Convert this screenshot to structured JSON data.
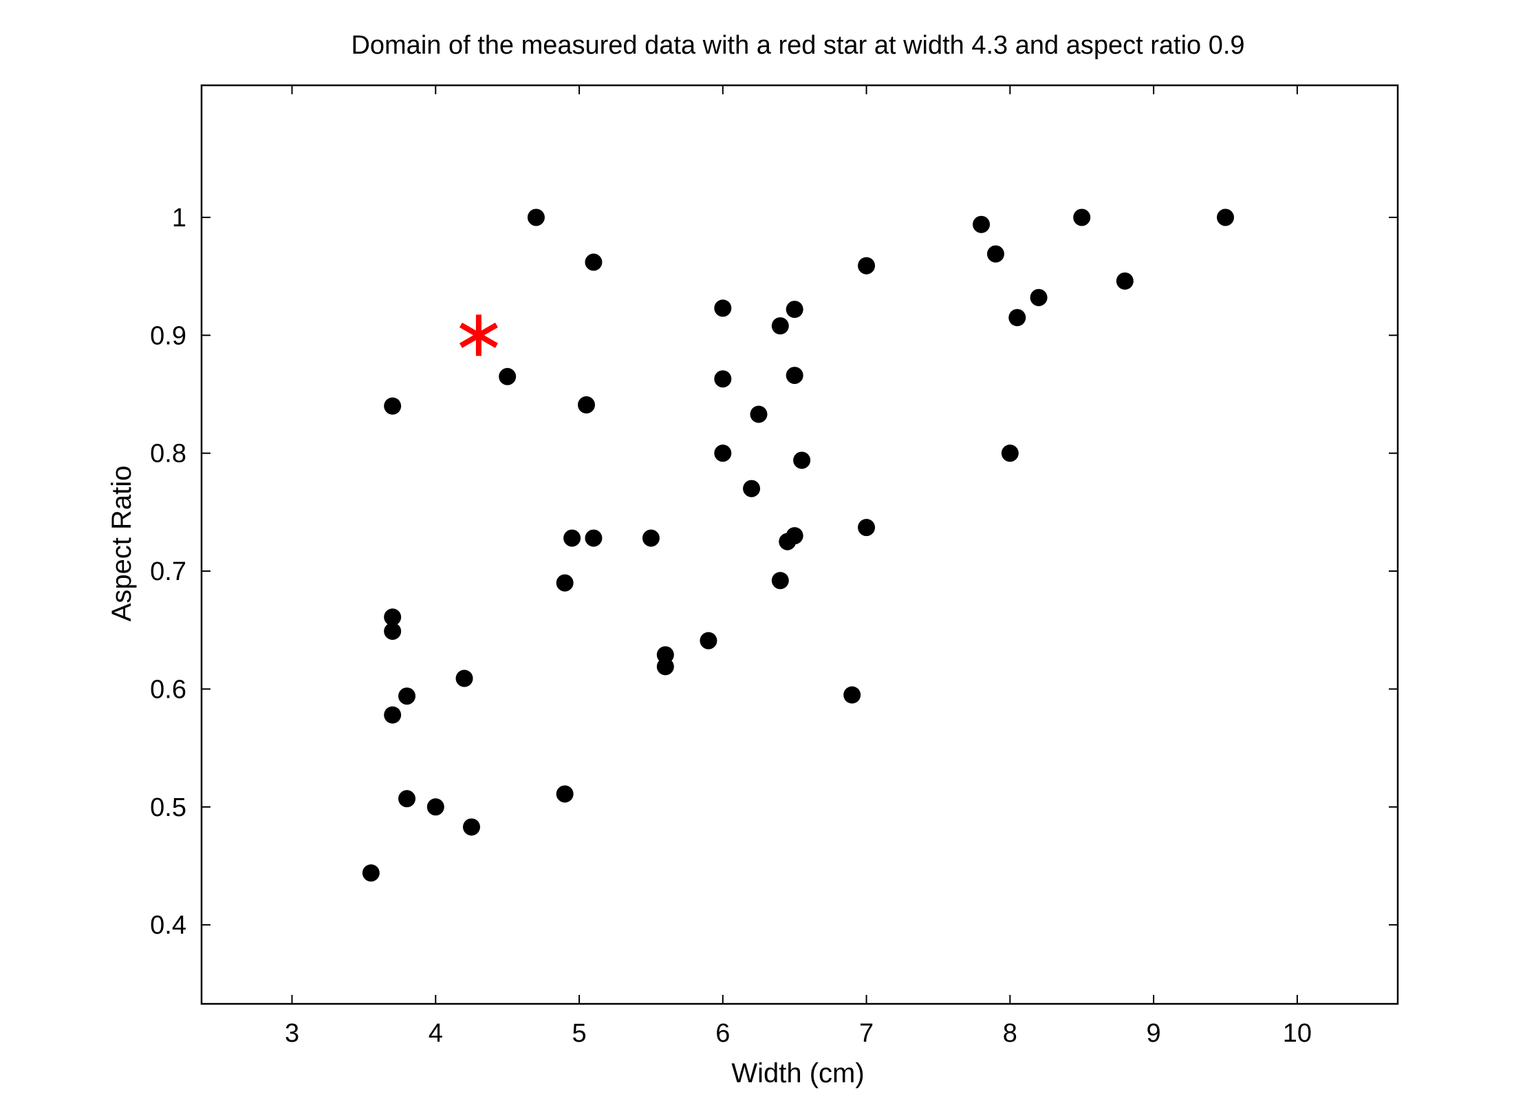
{
  "chart_data": {
    "type": "scatter",
    "title": "Domain of the measured data with a red star at width 4.3 and aspect ratio 0.9",
    "xlabel": "Width (cm)",
    "ylabel": "Aspect Ratio",
    "xlim": [
      2.37,
      10.7
    ],
    "ylim": [
      0.333,
      1.112
    ],
    "x_ticks": [
      3,
      4,
      5,
      6,
      7,
      8,
      9,
      10
    ],
    "y_ticks": [
      0.4,
      0.5,
      0.6,
      0.7,
      0.8,
      0.9,
      1
    ],
    "x_tick_labels": [
      "3",
      "4",
      "5",
      "6",
      "7",
      "8",
      "9",
      "10"
    ],
    "y_tick_labels": [
      "0.4",
      "0.5",
      "0.6",
      "0.7",
      "0.8",
      "0.9",
      "1"
    ],
    "grid": false,
    "series": [
      {
        "marker": "filled-circle",
        "color": "#000000",
        "points": [
          [
            3.55,
            0.444
          ],
          [
            3.7,
            0.84
          ],
          [
            3.7,
            0.661
          ],
          [
            3.7,
            0.649
          ],
          [
            3.7,
            0.578
          ],
          [
            3.8,
            0.594
          ],
          [
            3.8,
            0.507
          ],
          [
            4.0,
            0.5
          ],
          [
            4.2,
            0.609
          ],
          [
            4.25,
            0.483
          ],
          [
            4.5,
            0.865
          ],
          [
            4.7,
            1.0
          ],
          [
            4.9,
            0.69
          ],
          [
            4.9,
            0.511
          ],
          [
            4.95,
            0.728
          ],
          [
            5.05,
            0.841
          ],
          [
            5.1,
            0.962
          ],
          [
            5.1,
            0.728
          ],
          [
            5.5,
            0.728
          ],
          [
            5.6,
            0.629
          ],
          [
            5.6,
            0.619
          ],
          [
            5.9,
            0.641
          ],
          [
            6.0,
            0.923
          ],
          [
            6.0,
            0.863
          ],
          [
            6.0,
            0.8
          ],
          [
            6.2,
            0.77
          ],
          [
            6.25,
            0.833
          ],
          [
            6.4,
            0.908
          ],
          [
            6.4,
            0.692
          ],
          [
            6.45,
            0.725
          ],
          [
            6.5,
            0.922
          ],
          [
            6.5,
            0.866
          ],
          [
            6.5,
            0.73
          ],
          [
            6.55,
            0.794
          ],
          [
            6.9,
            0.595
          ],
          [
            7.0,
            0.959
          ],
          [
            7.0,
            0.737
          ],
          [
            7.8,
            0.994
          ],
          [
            7.9,
            0.969
          ],
          [
            8.0,
            0.8
          ],
          [
            8.05,
            0.915
          ],
          [
            8.2,
            0.932
          ],
          [
            8.5,
            1.0
          ],
          [
            8.8,
            0.946
          ],
          [
            9.5,
            1.0
          ]
        ]
      },
      {
        "marker": "asterisk",
        "color": "#ff0000",
        "points": [
          [
            4.3,
            0.9
          ]
        ]
      }
    ]
  }
}
